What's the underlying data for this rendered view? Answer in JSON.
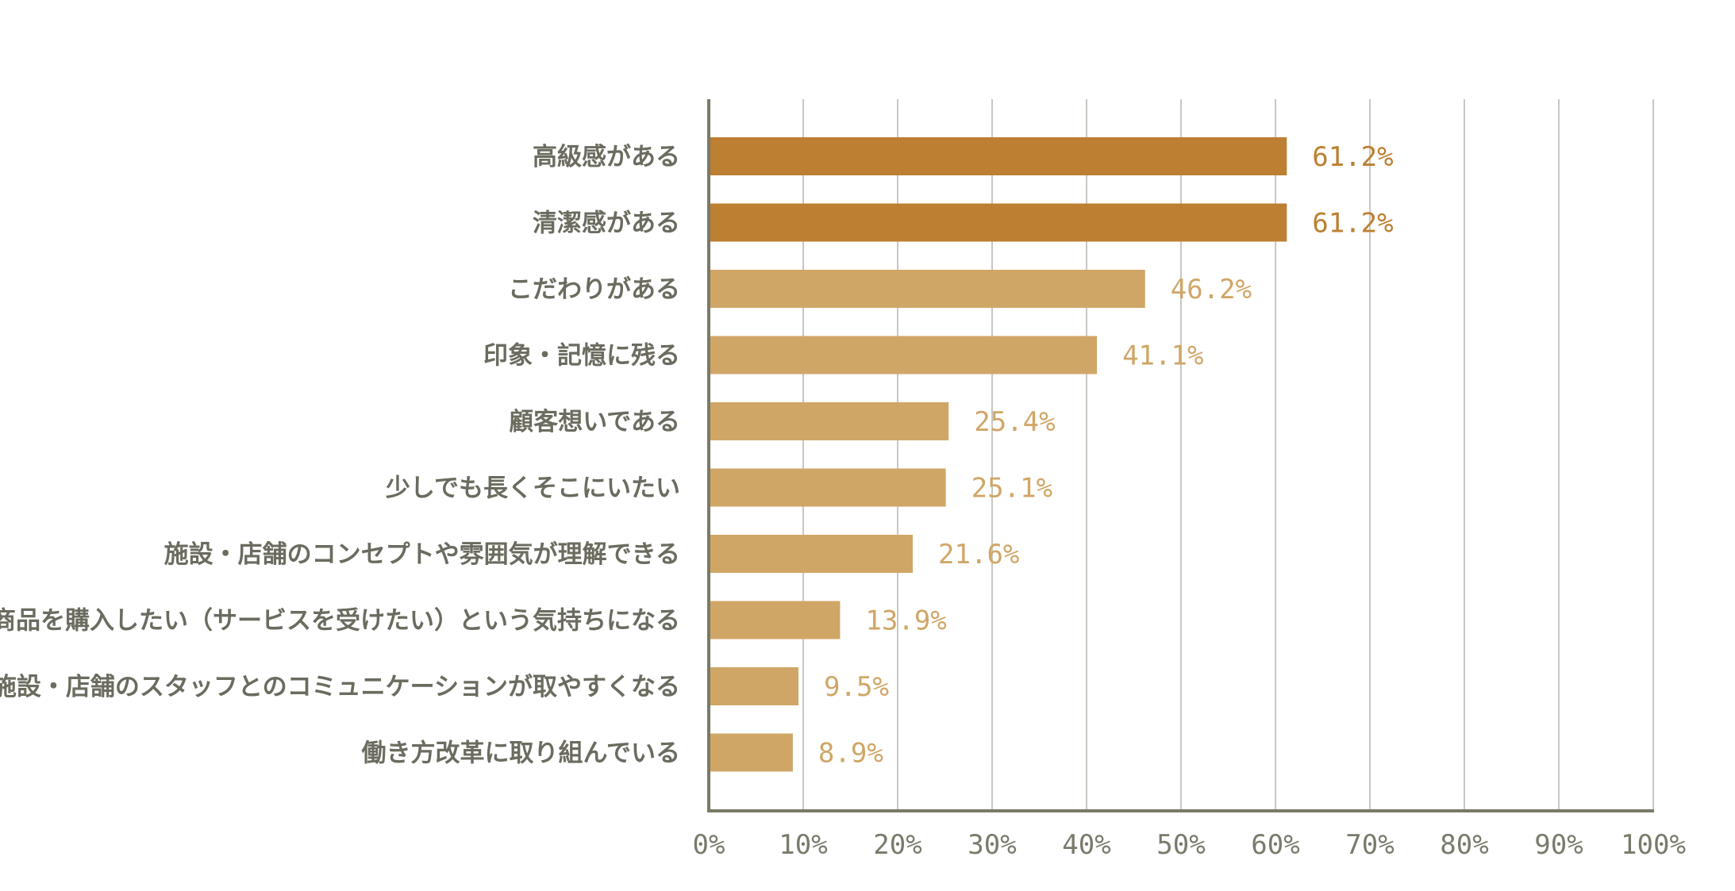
{
  "chart_data": {
    "type": "bar",
    "orientation": "horizontal",
    "categories": [
      "高級感がある",
      "清潔感がある",
      "こだわりがある",
      "印象・記憶に残る",
      "顧客想いである",
      "少しでも長くそこにいたい",
      "施設・店舗のコンセプトや雰囲気が理解できる",
      "商品を購入したい（サービスを受けたい）という気持ちになる",
      "施設・店舗のスタッフとのコミュニケーションが取やすくなる",
      "働き方改革に取り組んでいる"
    ],
    "values": [
      61.2,
      61.2,
      46.2,
      41.1,
      25.4,
      25.1,
      21.6,
      13.9,
      9.5,
      8.9
    ],
    "value_labels": [
      "61.2%",
      "61.2%",
      "46.2%",
      "41.1%",
      "25.4%",
      "25.1%",
      "21.6%",
      "13.9%",
      "9.5%",
      "8.9%"
    ],
    "highlighted": [
      true,
      true,
      false,
      false,
      false,
      false,
      false,
      false,
      false,
      false
    ],
    "xlim": [
      0,
      100
    ],
    "x_ticks": [
      "0%",
      "10%",
      "20%",
      "30%",
      "40%",
      "50%",
      "60%",
      "70%",
      "80%",
      "90%",
      "100%"
    ],
    "grid": "vertical",
    "title": "",
    "xlabel": "",
    "ylabel": "",
    "colors": {
      "highlight": "#bd7f31",
      "normal": "#d0a667",
      "axis": "#7a7a68",
      "grid": "#c8c8c2",
      "category_text": "#6b6b5f",
      "tick_text": "#7a7a6c"
    }
  }
}
